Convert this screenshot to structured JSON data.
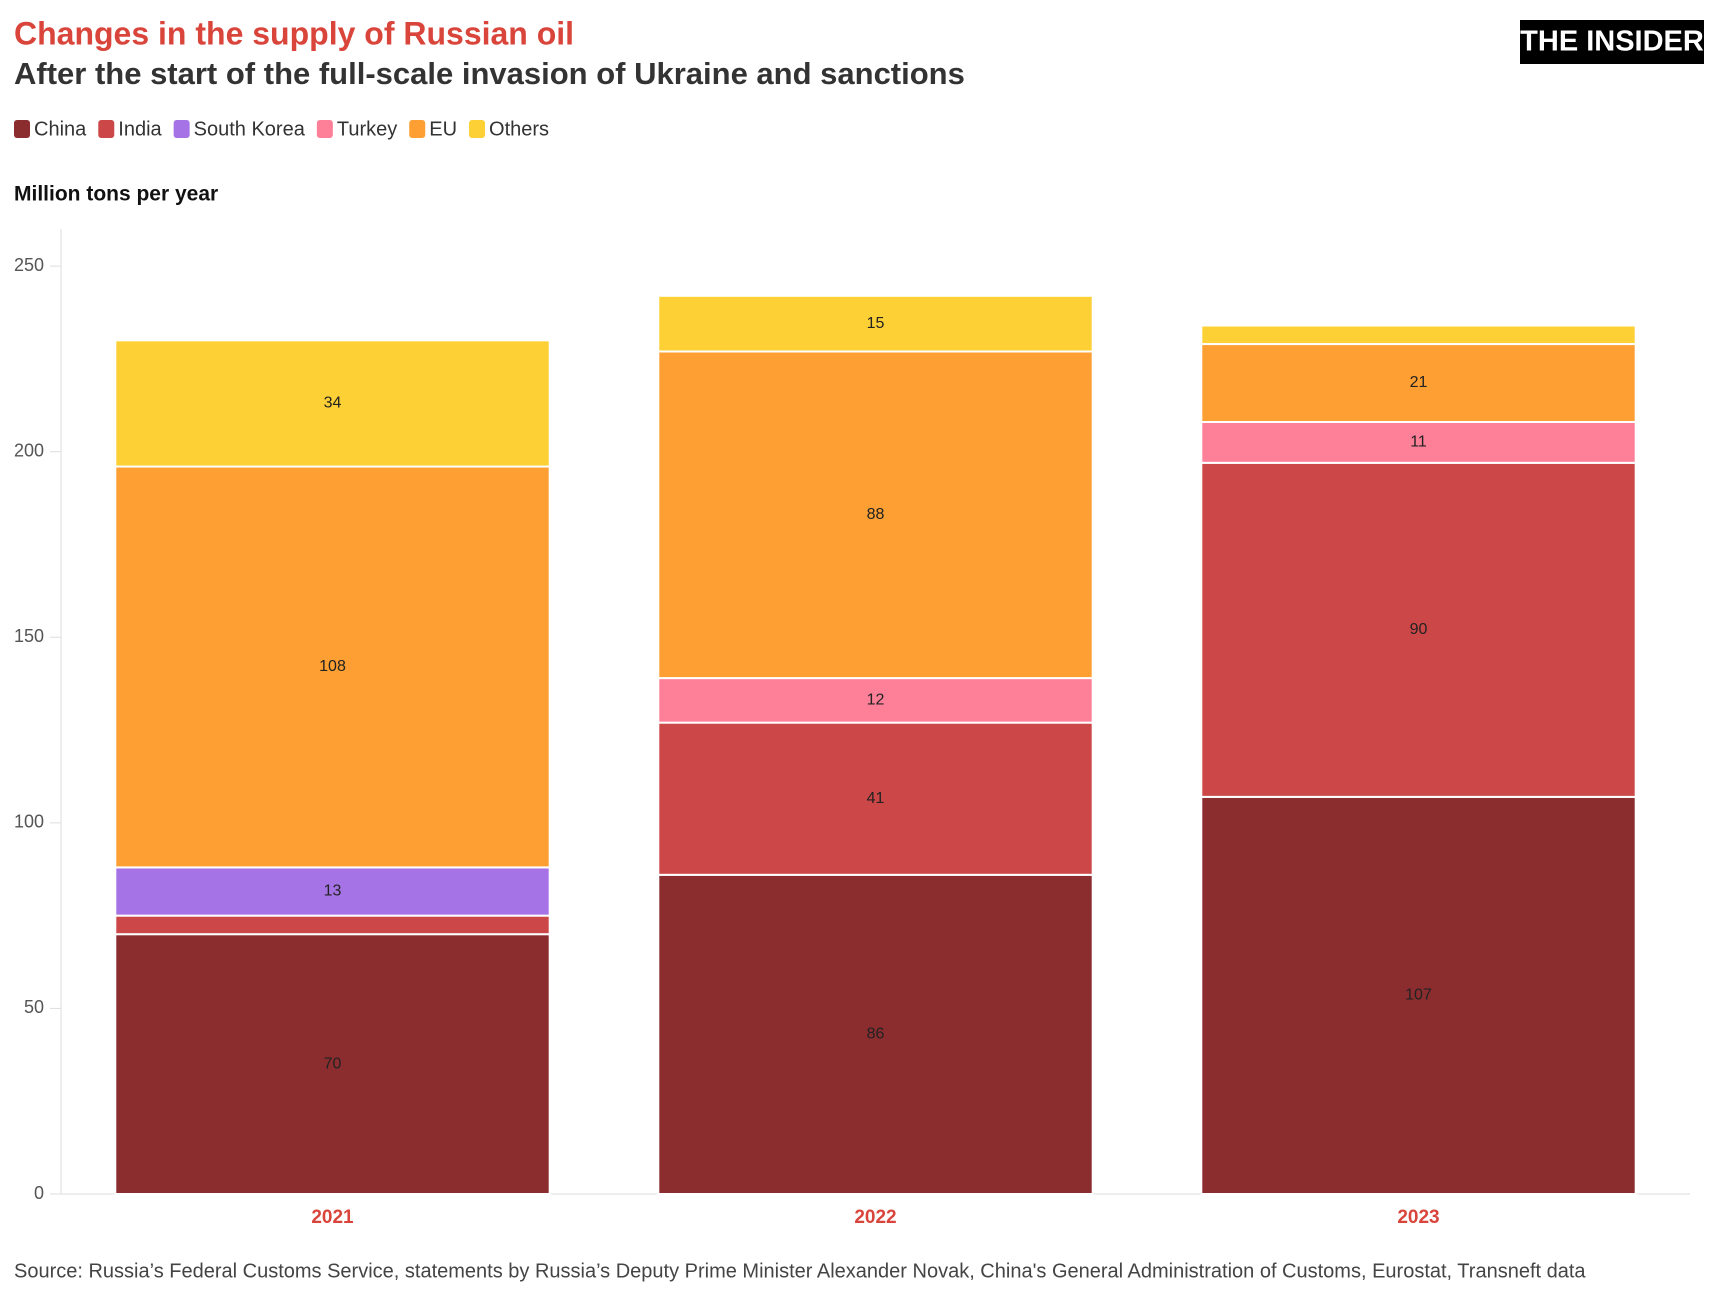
{
  "chart_data": {
    "type": "stacked_bar",
    "title": "Changes in the supply of Russian oil",
    "subtitle": "After the start of the full-scale invasion of Ukraine and sanctions",
    "logo": "THE INSIDER",
    "ylabel": "Million tons per year",
    "source": "Source: Russia’s Federal Customs Service, statements by Russia’s Deputy Prime Minister Alexander Novak, China's General Administration of Customs, Eurostat, Transneft data",
    "categories": [
      "2021",
      "2022",
      "2023"
    ],
    "series": [
      {
        "name": "China",
        "color": "#8b2c2f",
        "values": [
          70,
          86,
          107
        ]
      },
      {
        "name": "India",
        "color": "#cc4748",
        "values": [
          5,
          41,
          90
        ]
      },
      {
        "name": "South Korea",
        "color": "#a573e6",
        "values": [
          13,
          null,
          null
        ]
      },
      {
        "name": "Turkey",
        "color": "#fd7f98",
        "values": [
          null,
          12,
          11
        ]
      },
      {
        "name": "EU",
        "color": "#fd9f32",
        "values": [
          108,
          88,
          21
        ]
      },
      {
        "name": "Others",
        "color": "#fdd035",
        "values": [
          34,
          15,
          5
        ]
      }
    ],
    "ylim": [
      0,
      260
    ],
    "yticks": [
      0,
      50,
      100,
      150,
      200,
      250
    ],
    "grid": false
  }
}
